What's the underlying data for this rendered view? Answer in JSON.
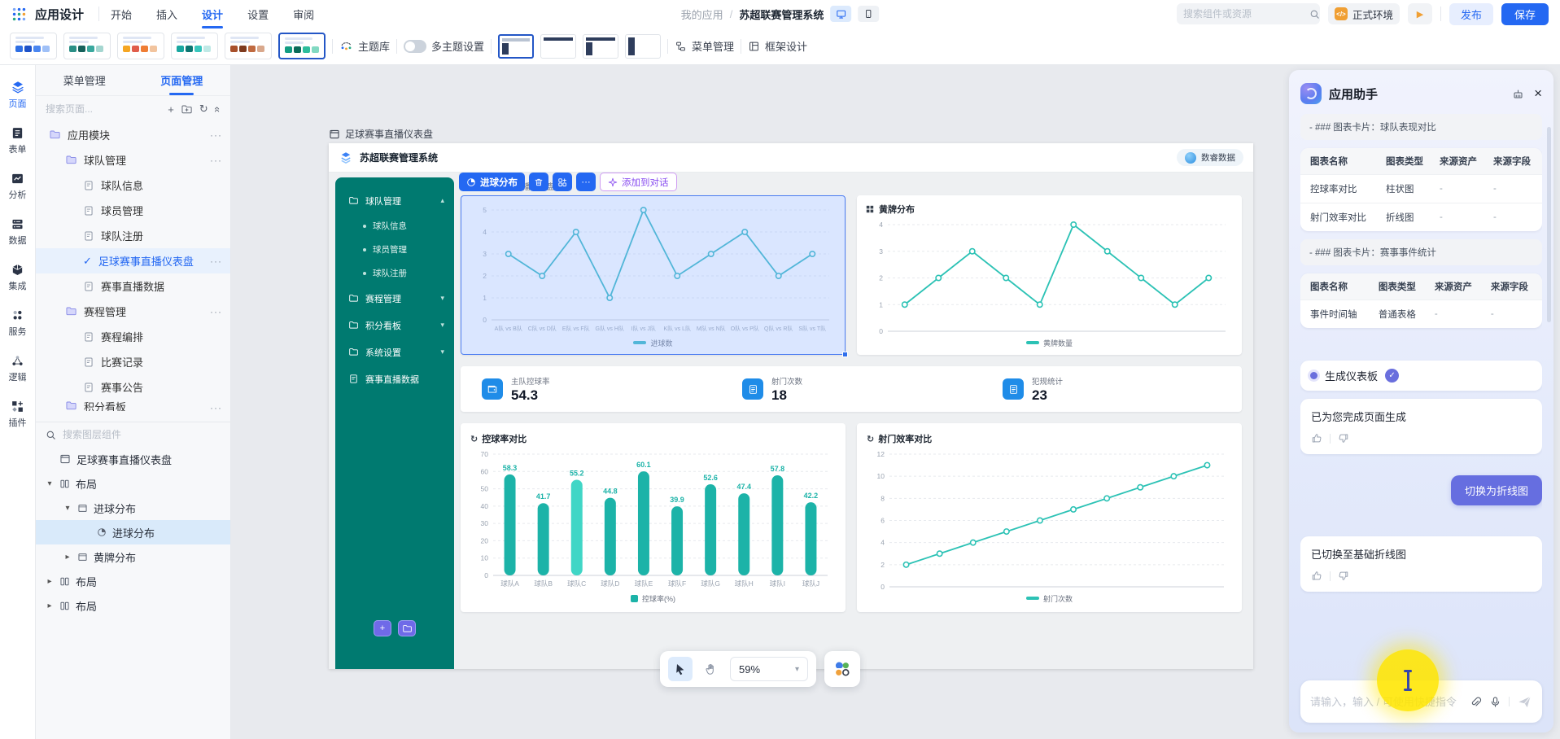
{
  "colors": {
    "accent_blue": "#2468f2",
    "sidebar_teal": "#007a70",
    "chart_teal": "#1cb3a8",
    "assistant_purple": "#6a6fdd",
    "highlight_yellow": "#ffe600"
  },
  "topbar": {
    "app_title": "应用设计",
    "menus": [
      {
        "label": "开始"
      },
      {
        "label": "插入"
      },
      {
        "label": "设计",
        "active": true
      },
      {
        "label": "设置"
      },
      {
        "label": "审阅"
      }
    ],
    "path_parent": "我的应用",
    "path_current": "苏超联赛管理系统",
    "search_placeholder": "搜索组件或资源",
    "env_label": "正式环境",
    "publish_label": "发布",
    "save_label": "保存"
  },
  "ribbon": {
    "swatches": [
      {
        "colors": [
          "#2f6fe4",
          "#1d52c9",
          "#4a86f0",
          "#9fc0f7"
        ],
        "selected": false
      },
      {
        "colors": [
          "#2a8f86",
          "#15615b",
          "#3aa89e",
          "#a5d6d0"
        ],
        "selected": false
      },
      {
        "colors": [
          "#f5a623",
          "#e05d4b",
          "#ef7d35",
          "#f2c49e"
        ],
        "selected": false
      },
      {
        "colors": [
          "#19a7a0",
          "#0c7672",
          "#39c6bd",
          "#bfe9e6"
        ],
        "selected": false
      },
      {
        "colors": [
          "#a8502b",
          "#7e3a1e",
          "#c06a40",
          "#d9a88c"
        ],
        "selected": false
      },
      {
        "colors": [
          "#129c82",
          "#0a6b59",
          "#2dbd9c",
          "#82d9c2"
        ],
        "selected": true
      }
    ],
    "theme_lib": "主题库",
    "multi_theme": "多主题设置",
    "layouts": [
      {
        "variant": "top-left",
        "selected": true
      },
      {
        "variant": "top-dark",
        "selected": false
      },
      {
        "variant": "top-left-dark",
        "selected": false
      },
      {
        "variant": "left-dark",
        "selected": false
      }
    ],
    "menu_mgmt": "菜单管理",
    "frame_design": "框架设计"
  },
  "rail": [
    {
      "label": "页面",
      "icon": "pages",
      "active": true
    },
    {
      "label": "表单",
      "icon": "form",
      "active": false
    },
    {
      "label": "分析",
      "icon": "analysis",
      "active": false
    },
    {
      "label": "数据",
      "icon": "datasvc",
      "active": false
    },
    {
      "label": "集成",
      "icon": "integration",
      "active": false
    },
    {
      "label": "服务",
      "icon": "service",
      "active": false
    },
    {
      "label": "逻辑",
      "icon": "logic",
      "active": false
    },
    {
      "label": "插件",
      "icon": "plugin",
      "active": false
    }
  ],
  "explorer": {
    "tabs": [
      {
        "label": "菜单管理",
        "active": false
      },
      {
        "label": "页面管理",
        "active": true
      }
    ],
    "search_placeholder": "搜索页面...",
    "tree": [
      {
        "label": "应用模块",
        "type": "folder",
        "level": 0,
        "more": true
      },
      {
        "label": "球队管理",
        "type": "folder",
        "level": 1,
        "more": true
      },
      {
        "label": "球队信息",
        "type": "page",
        "level": 2
      },
      {
        "label": "球员管理",
        "type": "page",
        "level": 2
      },
      {
        "label": "球队注册",
        "type": "page",
        "level": 2
      },
      {
        "label": "足球赛事直播仪表盘",
        "type": "check",
        "level": 2,
        "selected": true,
        "more": true
      },
      {
        "label": "赛事直播数据",
        "type": "page",
        "level": 2
      },
      {
        "label": "赛程管理",
        "type": "folder",
        "level": 1,
        "more": true
      },
      {
        "label": "赛程编排",
        "type": "page",
        "level": 2
      },
      {
        "label": "比赛记录",
        "type": "page",
        "level": 2
      },
      {
        "label": "赛事公告",
        "type": "page",
        "level": 2
      },
      {
        "label": "积分看板",
        "type": "folder",
        "level": 1,
        "more": true,
        "clipped": true
      }
    ],
    "layer_search_placeholder": "搜索图层组件",
    "layers": [
      {
        "label": "足球赛事直播仪表盘",
        "icon": "window",
        "indent": 0
      },
      {
        "label": "布局",
        "icon": "columns",
        "indent": 0,
        "caret": "down"
      },
      {
        "label": "进球分布",
        "icon": "frame",
        "indent": 1,
        "caret": "down"
      },
      {
        "label": "进球分布",
        "icon": "pie",
        "indent": 2,
        "selected": true
      },
      {
        "label": "黄牌分布",
        "icon": "frame",
        "indent": 1,
        "caret": "right"
      },
      {
        "label": "布局",
        "icon": "columns",
        "indent": 0,
        "caret": "right"
      },
      {
        "label": "布局",
        "icon": "columns",
        "indent": 0,
        "caret": "right"
      }
    ]
  },
  "canvas": {
    "page_tag": "足球赛事直播仪表盘",
    "zoom": "59%",
    "dashboard": {
      "brand": "苏超联赛管理系统",
      "user_badge": "数睿数据",
      "breadcrumb_current": "足球赛事直播仪表盘",
      "menu": [
        {
          "label": "球队管理",
          "icon": "folder",
          "caret": "up"
        },
        {
          "label": "球队信息",
          "bullet": true
        },
        {
          "label": "球员管理",
          "bullet": true
        },
        {
          "label": "球队注册",
          "bullet": true
        },
        {
          "label": "赛程管理",
          "icon": "folder",
          "caret": "down"
        },
        {
          "label": "积分看板",
          "icon": "folder",
          "caret": "down"
        },
        {
          "label": "系统设置",
          "icon": "folder",
          "caret": "down"
        },
        {
          "label": "赛事直播数据",
          "icon": "doc"
        }
      ],
      "selection_toolbar": {
        "title": "进球分布",
        "add_to_chat": "添加到对话"
      },
      "stats": [
        {
          "label": "主队控球率",
          "value": "54.3"
        },
        {
          "label": "射门次数",
          "value": "18"
        },
        {
          "label": "犯规统计",
          "value": "23"
        }
      ]
    }
  },
  "chart_data": [
    {
      "id": "goal-distribution",
      "type": "line",
      "title": "进球分布",
      "legend": "进球数",
      "legend_position": "bottom",
      "grid": true,
      "categories": [
        "A队 vs B队",
        "C队 vs D队",
        "E队 vs F队",
        "G队 vs H队",
        "I队 vs J队",
        "K队 vs L队",
        "M队 vs N队",
        "O队 vs P队",
        "Q队 vs R队",
        "S队 vs T队"
      ],
      "values": [
        3,
        2,
        4,
        1,
        5,
        2,
        3,
        4,
        2,
        3
      ],
      "ylim": [
        0,
        5
      ],
      "ytick": 1,
      "show_x_labels": true,
      "color": "#2eb5c4",
      "selected": true
    },
    {
      "id": "yellow-cards",
      "type": "line",
      "title": "黄牌分布",
      "legend": "黄牌数量",
      "legend_position": "bottom",
      "grid": true,
      "categories": [
        "1",
        "2",
        "3",
        "4",
        "5",
        "6",
        "7",
        "8",
        "9",
        "10"
      ],
      "values": [
        1,
        2,
        3,
        2,
        1,
        4,
        3,
        2,
        1,
        2
      ],
      "ylim": [
        0,
        4
      ],
      "ytick": 1,
      "show_x_labels": false,
      "color": "#2cc2b5"
    },
    {
      "id": "possession-compare",
      "type": "bar",
      "title": "控球率对比",
      "legend": "控球率(%)",
      "legend_position": "bottom",
      "grid": true,
      "categories": [
        "球队A",
        "球队B",
        "球队C",
        "球队D",
        "球队E",
        "球队F",
        "球队G",
        "球队H",
        "球队I",
        "球队J"
      ],
      "values": [
        58.3,
        41.7,
        55.2,
        44.8,
        60.1,
        39.9,
        52.6,
        47.4,
        57.8,
        42.2
      ],
      "ylim": [
        0,
        70
      ],
      "ytick": 10,
      "show_x_labels": true,
      "color": "#1cb3a8",
      "highlight_index": 2,
      "highlight_color": "#40d6c6",
      "show_values": true
    },
    {
      "id": "shot-efficiency",
      "type": "line",
      "title": "射门效率对比",
      "legend": "射门次数",
      "legend_position": "bottom",
      "grid": true,
      "categories": [
        "1",
        "2",
        "3",
        "4",
        "5",
        "6",
        "7",
        "8",
        "9",
        "10"
      ],
      "values": [
        2,
        3,
        4,
        5,
        6,
        7,
        8,
        9,
        10,
        11
      ],
      "ylim": [
        0,
        12
      ],
      "ytick": 2,
      "show_x_labels": false,
      "color": "#2cc2b5"
    }
  ],
  "assistant": {
    "title": "应用助手",
    "sections": [
      {
        "heading": "- ### 图表卡片：球队表现对比",
        "table": {
          "headers": [
            "图表名称",
            "图表类型",
            "来源资产",
            "来源字段"
          ],
          "rows": [
            [
              "控球率对比",
              "柱状图",
              "-",
              "-"
            ],
            [
              "射门效率对比",
              "折线图",
              "-",
              "-"
            ]
          ]
        }
      },
      {
        "heading": "- ### 图表卡片：赛事事件统计",
        "table": {
          "headers": [
            "图表名称",
            "图表类型",
            "来源资产",
            "来源字段"
          ],
          "rows": [
            [
              "事件时间轴",
              "普通表格",
              "-",
              "-"
            ]
          ]
        }
      }
    ],
    "status": {
      "label": "生成仪表板"
    },
    "messages": [
      {
        "role": "assistant",
        "text": "已为您完成页面生成",
        "feedback": true
      },
      {
        "role": "user",
        "text": "切换为折线图"
      },
      {
        "role": "assistant",
        "text": "已切换至基础折线图",
        "feedback": true
      }
    ],
    "input_placeholder": "请输入，输入 / 可使用快捷指令"
  }
}
